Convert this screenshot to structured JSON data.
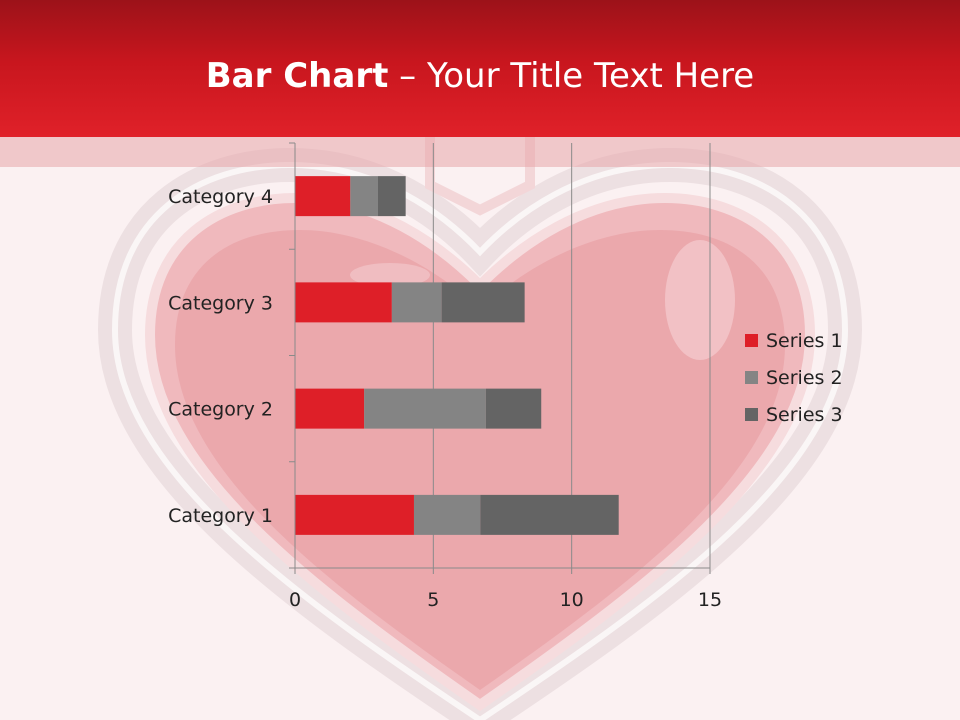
{
  "slide": {
    "title_bold": "Bar Chart",
    "title_rest": " – Your Title Text Here"
  },
  "theme": {
    "header": "#c8161e",
    "background": "#fbf1f2",
    "heart": "#e8a3a8"
  },
  "chart_data": {
    "type": "bar",
    "orientation": "horizontal",
    "stacked": true,
    "categories": [
      "Category 1",
      "Category 2",
      "Category 3",
      "Category 4"
    ],
    "series": [
      {
        "name": "Series 1",
        "values": [
          4.3,
          2.5,
          3.5,
          2.0
        ],
        "color": "#de1f28"
      },
      {
        "name": "Series 2",
        "values": [
          2.4,
          4.4,
          1.8,
          1.0
        ],
        "color": "#848484"
      },
      {
        "name": "Series 3",
        "values": [
          5.0,
          2.0,
          3.0,
          1.0
        ],
        "color": "#646464"
      }
    ],
    "xlim": [
      0,
      15
    ],
    "xticks": [
      0,
      5,
      10,
      15
    ],
    "grid": "vertical",
    "legend": "right"
  }
}
